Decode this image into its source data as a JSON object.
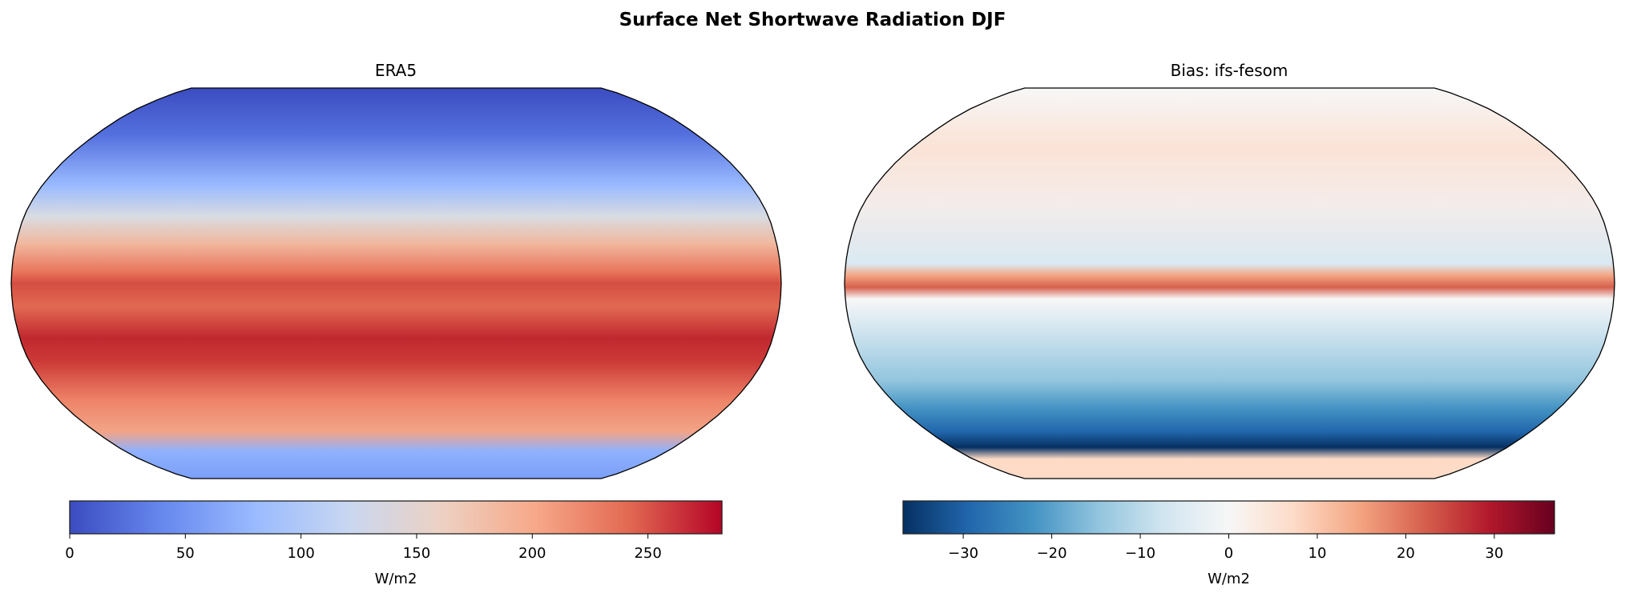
{
  "chart_data": {
    "title": "Surface Net Shortwave Radiation DJF",
    "type": "heatmap",
    "panels": [
      {
        "title": "ERA5",
        "projection": "Robinson",
        "coastlines": true,
        "colormap": "coolwarm",
        "colorbar": {
          "label": "W/m2",
          "range": [
            0,
            282
          ],
          "ticks": [
            0,
            50,
            100,
            150,
            200,
            250
          ],
          "tick_labels": [
            "0",
            "50",
            "100",
            "150",
            "200",
            "250"
          ],
          "placement": "bottom"
        },
        "colors": [
          "#3b4cc0",
          "#6788ee",
          "#9abbff",
          "#c9d7f0",
          "#edd1c2",
          "#f7a889",
          "#e26952",
          "#b40426"
        ]
      },
      {
        "title": "Bias: ifs-fesom",
        "projection": "Robinson",
        "coastlines": true,
        "colormap": "RdBu_r",
        "colorbar": {
          "label": "W/m2",
          "range": [
            -36.8,
            36.8
          ],
          "ticks": [
            -30,
            -20,
            -10,
            0,
            10,
            20,
            30
          ],
          "tick_labels": [
            "−30",
            "−20",
            "−10",
            "0",
            "10",
            "20",
            "30"
          ],
          "placement": "bottom"
        },
        "colors": [
          "#053061",
          "#2166ac",
          "#4393c3",
          "#92c5de",
          "#d1e5f0",
          "#f7f7f7",
          "#fddbc7",
          "#f4a582",
          "#d6604d",
          "#b2182b",
          "#67001f"
        ]
      }
    ]
  }
}
